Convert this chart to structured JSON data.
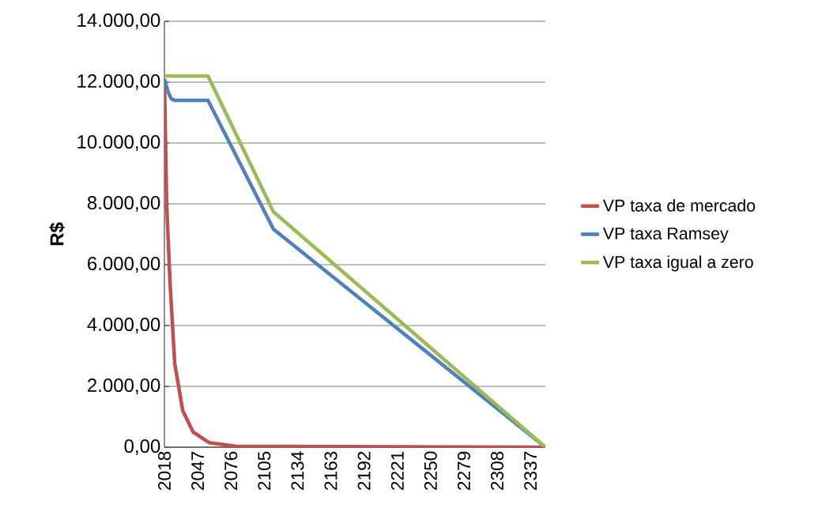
{
  "chart_data": {
    "type": "line",
    "ylabel": "R$",
    "xlim": [
      2018,
      2350
    ],
    "xticks": [
      2018,
      2047,
      2076,
      2105,
      2134,
      2163,
      2192,
      2221,
      2250,
      2279,
      2308,
      2337
    ],
    "ylim": [
      0,
      14000
    ],
    "yticks": [
      {
        "value": 0,
        "label": "0,00"
      },
      {
        "value": 2000,
        "label": "2.000,00"
      },
      {
        "value": 4000,
        "label": "4.000,00"
      },
      {
        "value": 6000,
        "label": "6.000,00"
      },
      {
        "value": 8000,
        "label": "8.000,00"
      },
      {
        "value": 10000,
        "label": "10.000,00"
      },
      {
        "value": 12000,
        "label": "12.000,00"
      },
      {
        "value": 14000,
        "label": "14.000,00"
      }
    ],
    "grid": "y",
    "legend": "right",
    "marker": "none",
    "line_style": "solid",
    "series": [
      {
        "name": "VP taxa de mercado",
        "color": "#c0504d",
        "x": [
          2018,
          2019,
          2020,
          2023,
          2027,
          2034,
          2043,
          2057,
          2080,
          2350
        ],
        "values": [
          12100,
          10000,
          7950,
          5350,
          2750,
          1200,
          500,
          150,
          30,
          0
        ]
      },
      {
        "name": "VP taxa Ramsey",
        "color": "#4f81bd",
        "x": [
          2018,
          2021,
          2024,
          2027,
          2056,
          2113,
          2350
        ],
        "values": [
          12100,
          11700,
          11450,
          11400,
          11400,
          7170,
          0
        ]
      },
      {
        "name": "VP taxa igual a zero",
        "color": "#9bbb59",
        "x": [
          2018,
          2056,
          2113,
          2350
        ],
        "values": [
          12200,
          12200,
          7740,
          0
        ]
      }
    ]
  }
}
